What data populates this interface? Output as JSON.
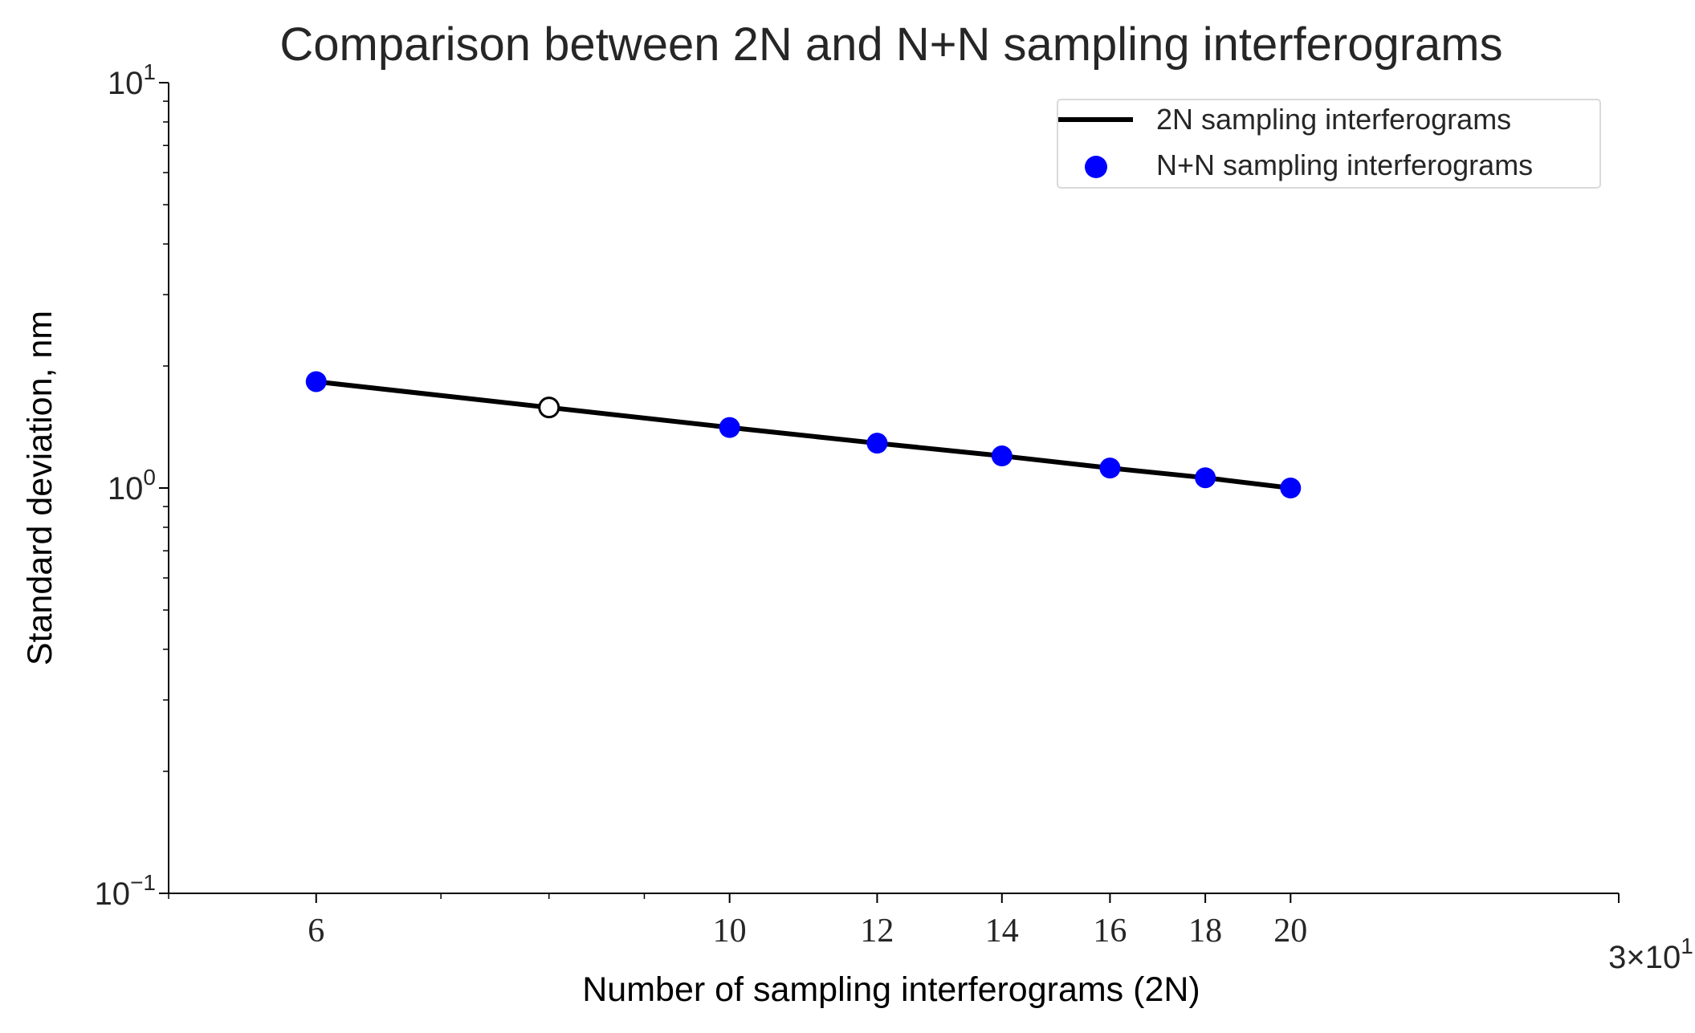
{
  "chart_data": {
    "type": "line",
    "title": "Comparison between 2N and N+N sampling interferograms",
    "xlabel": "Number of sampling interferograms (2N)",
    "ylabel": "Standard deviation, nm",
    "x_scale": "log",
    "y_scale": "log",
    "xlim": [
      5,
      30
    ],
    "ylim": [
      0.1,
      10
    ],
    "x_ticks": [
      {
        "value": 6,
        "label": "6"
      },
      {
        "value": 10,
        "label": "10"
      },
      {
        "value": 12,
        "label": "12"
      },
      {
        "value": 14,
        "label": "14"
      },
      {
        "value": 16,
        "label": "16"
      },
      {
        "value": 18,
        "label": "18"
      },
      {
        "value": 20,
        "label": "20"
      },
      {
        "value": 30,
        "label": "3×10",
        "exp": "1"
      }
    ],
    "x_minor_ticks": [
      5,
      7,
      8,
      9
    ],
    "y_ticks": [
      {
        "value": 10,
        "base": "10",
        "exp": "1"
      },
      {
        "value": 1,
        "base": "10",
        "exp": "0"
      },
      {
        "value": 0.1,
        "base": "10",
        "exp": "−1"
      }
    ],
    "y_minor_ticks": [
      0.2,
      0.3,
      0.4,
      0.5,
      0.6,
      0.7,
      0.8,
      0.9,
      2,
      3,
      4,
      5,
      6,
      7,
      8,
      9
    ],
    "series": [
      {
        "name": "2N sampling interferograms",
        "kind": "line",
        "color": "#000000",
        "x": [
          6,
          8,
          10,
          12,
          14,
          16,
          18,
          20
        ],
        "y": [
          1.83,
          1.58,
          1.41,
          1.29,
          1.2,
          1.12,
          1.06,
          1.0
        ]
      },
      {
        "name": "N+N sampling interferograms",
        "kind": "scatter",
        "color": "#0000ff",
        "x": [
          6,
          10,
          12,
          14,
          16,
          18,
          20
        ],
        "y": [
          1.83,
          1.41,
          1.29,
          1.2,
          1.12,
          1.06,
          1.0
        ]
      }
    ],
    "highlight_point": {
      "x": 8,
      "y": 1.58,
      "fill": "#ffffff",
      "stroke": "#000000"
    },
    "legend_position": "top-right",
    "grid": false
  }
}
